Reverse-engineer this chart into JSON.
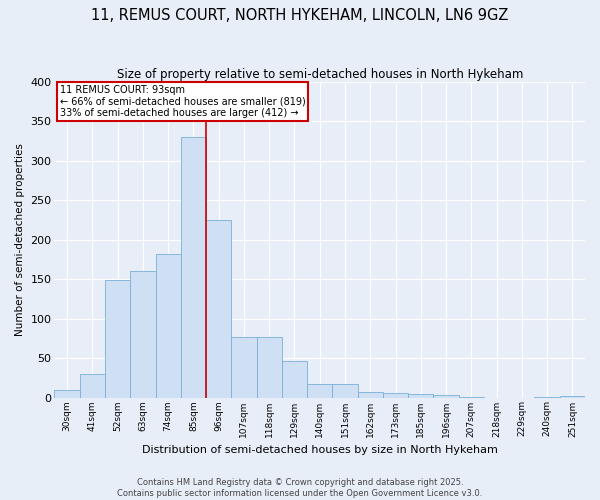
{
  "title": "11, REMUS COURT, NORTH HYKEHAM, LINCOLN, LN6 9GZ",
  "subtitle": "Size of property relative to semi-detached houses in North Hykeham",
  "xlabel": "Distribution of semi-detached houses by size in North Hykeham",
  "ylabel": "Number of semi-detached properties",
  "categories": [
    "30sqm",
    "41sqm",
    "52sqm",
    "63sqm",
    "74sqm",
    "85sqm",
    "96sqm",
    "107sqm",
    "118sqm",
    "129sqm",
    "140sqm",
    "151sqm",
    "162sqm",
    "173sqm",
    "185sqm",
    "196sqm",
    "207sqm",
    "218sqm",
    "229sqm",
    "240sqm",
    "251sqm"
  ],
  "values": [
    9,
    30,
    149,
    160,
    182,
    330,
    225,
    77,
    77,
    46,
    17,
    17,
    7,
    6,
    4,
    3,
    1,
    0,
    0,
    1,
    2
  ],
  "bar_color": "#cfe0f5",
  "bar_edge_color": "#7ab0d8",
  "annotation_title": "11 REMUS COURT: 93sqm",
  "annotation_line1": "← 66% of semi-detached houses are smaller (819)",
  "annotation_line2": "33% of semi-detached houses are larger (412) →",
  "annotation_box_color": "#ffffff",
  "annotation_box_edge_color": "#cc0000",
  "line_color": "#cc0000",
  "footer_line1": "Contains HM Land Registry data © Crown copyright and database right 2025.",
  "footer_line2": "Contains public sector information licensed under the Open Government Licence v3.0.",
  "bg_color": "#e8eef8",
  "plot_bg_color": "#e8eef8",
  "grid_color": "#ffffff",
  "ylim": [
    0,
    400
  ],
  "yticks": [
    0,
    50,
    100,
    150,
    200,
    250,
    300,
    350,
    400
  ]
}
